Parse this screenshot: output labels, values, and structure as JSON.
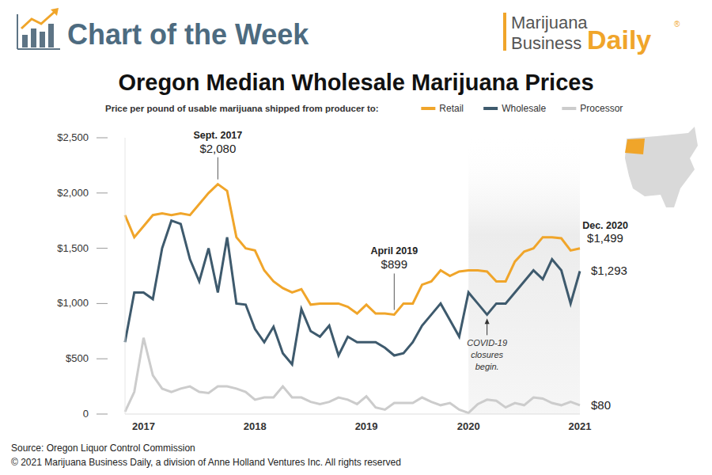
{
  "header": {
    "title": "Chart of the Week",
    "logo_line1": "Marijuana",
    "logo_line2": "Business",
    "logo_accent": "Daily",
    "logo_mark": "®"
  },
  "footer": {
    "source": "Source: Oregon Liquor Control Commission",
    "copyright": "© 2021 Marijuana Business Daily, a division of Anne Holland Ventures Inc. All rights reserved"
  },
  "chart_data": {
    "type": "line",
    "title": "Oregon Median Wholesale Marijuana Prices",
    "subtitle": "Price per pound of usable marijuana shipped from producer to:",
    "categories": [
      null,
      null,
      "2017",
      null,
      null,
      null,
      null,
      null,
      null,
      null,
      null,
      null,
      null,
      null,
      "2018",
      null,
      null,
      null,
      null,
      null,
      null,
      null,
      null,
      null,
      null,
      null,
      "2019",
      null,
      null,
      null,
      null,
      null,
      null,
      null,
      null,
      null,
      null,
      "2020",
      null,
      null,
      null,
      null,
      null,
      null,
      null,
      null,
      null,
      null,
      null,
      "2021"
    ],
    "series": [
      {
        "name": "Retail",
        "color": "#f0a52a",
        "values": [
          1800,
          1600,
          1700,
          1800,
          1815,
          1800,
          1815,
          1800,
          1900,
          2000,
          2080,
          2020,
          1600,
          1500,
          1480,
          1300,
          1200,
          1140,
          1100,
          1130,
          990,
          1000,
          1000,
          1000,
          970,
          910,
          990,
          910,
          910,
          899,
          1000,
          1000,
          1170,
          1200,
          1300,
          1250,
          1290,
          1300,
          1300,
          1290,
          1200,
          1200,
          1380,
          1470,
          1500,
          1600,
          1600,
          1590,
          1480,
          1499
        ]
      },
      {
        "name": "Wholesale",
        "color": "#3e5a6d",
        "values": [
          650,
          1100,
          1100,
          1040,
          1500,
          1750,
          1720,
          1400,
          1200,
          1500,
          1100,
          1600,
          1000,
          990,
          770,
          650,
          790,
          550,
          450,
          950,
          750,
          700,
          800,
          530,
          700,
          650,
          650,
          650,
          600,
          530,
          550,
          650,
          800,
          900,
          1000,
          850,
          700,
          1100,
          1000,
          900,
          1000,
          1000,
          1100,
          1200,
          1300,
          1220,
          1400,
          1300,
          1000,
          1293
        ]
      },
      {
        "name": "Processor",
        "color": "#cccccc",
        "values": [
          20,
          200,
          690,
          350,
          230,
          200,
          230,
          250,
          200,
          190,
          250,
          250,
          230,
          200,
          130,
          150,
          150,
          250,
          150,
          150,
          110,
          90,
          110,
          150,
          130,
          90,
          160,
          60,
          40,
          100,
          100,
          100,
          150,
          110,
          80,
          100,
          40,
          10,
          90,
          130,
          120,
          60,
          100,
          80,
          150,
          140,
          100,
          80,
          110,
          80
        ]
      }
    ],
    "ylim": [
      0,
      2500
    ],
    "yticks": [
      {
        "value": 0,
        "label": "0"
      },
      {
        "value": 500,
        "label": "$500"
      },
      {
        "value": 1000,
        "label": "$1,000"
      },
      {
        "value": 1500,
        "label": "$1,500"
      },
      {
        "value": 2000,
        "label": "$2,000"
      },
      {
        "value": 2500,
        "label": "$2,500"
      }
    ],
    "grid": false,
    "highlight": {
      "from": "2020",
      "to": "2021"
    },
    "callouts": [
      {
        "series": "Retail",
        "index": 10,
        "label": "Sept. 2017",
        "value": 2080,
        "value_label": "$2,080"
      },
      {
        "series": "Retail",
        "index": 29,
        "label": "April 2019",
        "value": 899,
        "value_label": "$899"
      },
      {
        "series": "Retail",
        "index": 49,
        "label": "Dec. 2020",
        "value": 1499,
        "value_label": "$1,499"
      }
    ],
    "end_labels": [
      {
        "series": "Wholesale",
        "index": 49,
        "value": 1293,
        "value_label": "$1,293"
      },
      {
        "series": "Processor",
        "index": 49,
        "value": 80,
        "value_label": "$80"
      }
    ],
    "notes": [
      {
        "series": "Wholesale",
        "index": 39,
        "text": [
          "COVID-19",
          "closures",
          "begin."
        ]
      }
    ]
  }
}
